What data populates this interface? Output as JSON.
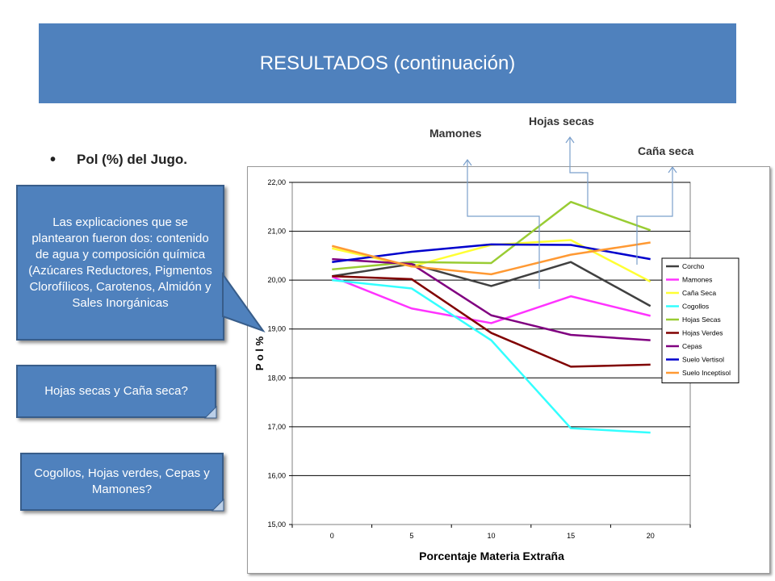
{
  "title": "RESULTADOS (continuación)",
  "bullet": "Pol (%) del Jugo.",
  "callouts": {
    "explanation": "Las explicaciones que se plantearon fueron dos: contenido de agua y composición química (Azúcares Reductores, Pigmentos Clorofílicos, Carotenos, Almidón y  Sales Inorgánicas",
    "question1": "Hojas secas y Caña seca?",
    "question2": "Cogollos, Hojas verdes, Cepas y Mamones?"
  },
  "annotations": {
    "mamones": "Mamones",
    "hojas_secas": "Hojas secas",
    "cana_seca": "Caña seca"
  },
  "chart_data": {
    "type": "line",
    "title": "",
    "xlabel": "Porcentaje Materia Extraña",
    "ylabel": "P o l  %",
    "x": [
      0,
      5,
      10,
      15,
      20
    ],
    "ylim": [
      15,
      22
    ],
    "yticks": [
      "15,00",
      "16,00",
      "17,00",
      "18,00",
      "19,00",
      "20,00",
      "21,00",
      "22,00"
    ],
    "grid": "horizontal",
    "legend": "right",
    "series": [
      {
        "name": "Corcho",
        "color": "#404040",
        "values": [
          20.08,
          20.33,
          19.88,
          20.37,
          19.47
        ]
      },
      {
        "name": "Mamones",
        "color": "#ff33ff",
        "values": [
          20.07,
          19.42,
          19.12,
          19.67,
          19.27
        ]
      },
      {
        "name": "Caña Seca",
        "color": "#ffff33",
        "values": [
          20.65,
          20.28,
          20.72,
          20.82,
          19.97
        ]
      },
      {
        "name": "Cogollos",
        "color": "#33ffff",
        "values": [
          20.0,
          19.83,
          18.77,
          16.97,
          16.88
        ]
      },
      {
        "name": "Hojas Secas",
        "color": "#99cc33",
        "values": [
          20.22,
          20.37,
          20.35,
          21.6,
          21.02
        ]
      },
      {
        "name": "Hojas Verdes",
        "color": "#800000",
        "values": [
          20.08,
          20.02,
          18.92,
          18.23,
          18.27
        ]
      },
      {
        "name": "Cepas",
        "color": "#800080",
        "values": [
          20.43,
          20.33,
          19.28,
          18.88,
          18.77
        ]
      },
      {
        "name": "Suelo Vertisol",
        "color": "#0000cc",
        "values": [
          20.37,
          20.58,
          20.73,
          20.72,
          20.43
        ]
      },
      {
        "name": "Suelo Inceptisol",
        "color": "#ff9933",
        "values": [
          20.7,
          20.28,
          20.12,
          20.52,
          20.77
        ]
      }
    ]
  }
}
